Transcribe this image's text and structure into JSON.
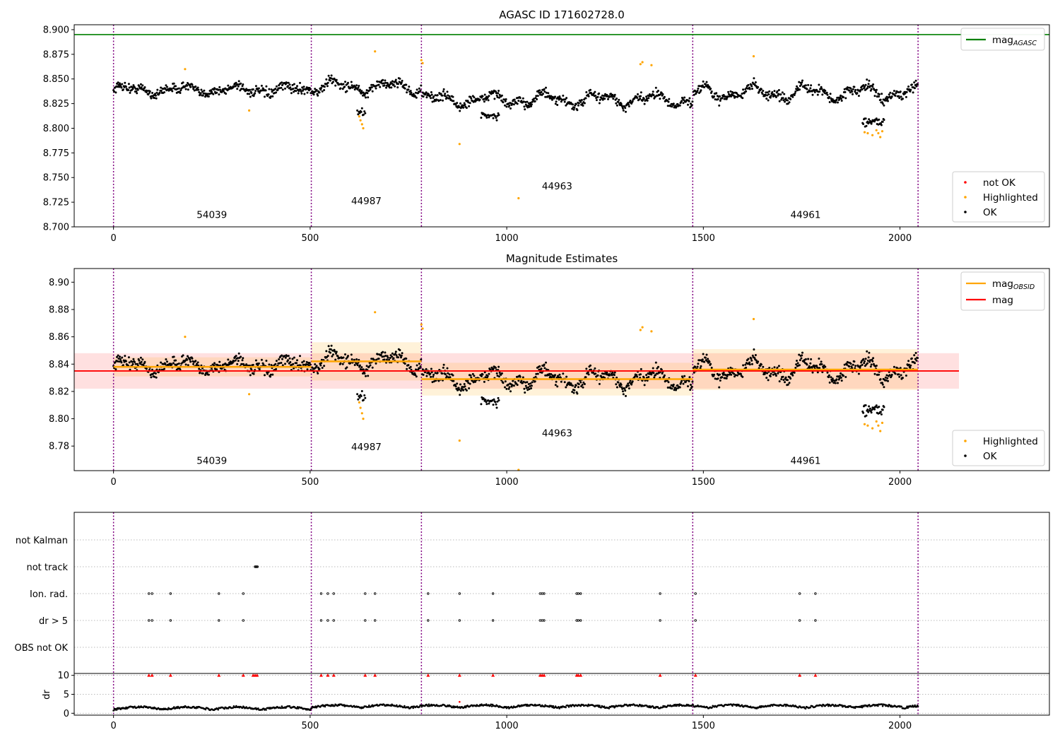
{
  "chart_data": [
    {
      "type": "scatter",
      "title": "AGASC ID 171602728.0",
      "xlim": [
        -100,
        2380
      ],
      "ylim": [
        8.7,
        8.905
      ],
      "xticks": [
        0,
        500,
        1000,
        1500,
        2000
      ],
      "yticks": [
        "8.700",
        "8.725",
        "8.750",
        "8.775",
        "8.800",
        "8.825",
        "8.850",
        "8.875",
        "8.900"
      ],
      "obs_boundaries": [
        0,
        503,
        783,
        1473,
        2046
      ],
      "obs_labels": [
        {
          "text": "54039",
          "x": 250,
          "y": 8.709
        },
        {
          "text": "44987",
          "x": 643,
          "y": 8.723
        },
        {
          "text": "44963",
          "x": 1128,
          "y": 8.738
        },
        {
          "text": "44961",
          "x": 1760,
          "y": 8.709
        }
      ],
      "mag_agasc": 8.895,
      "legend_top": [
        {
          "label": "mag",
          "sub": "AGASC",
          "color": "#008000"
        }
      ],
      "legend_bottom": [
        {
          "label": "not OK",
          "color": "#ff0000"
        },
        {
          "label": "Highlighted",
          "color": "#ffa500"
        },
        {
          "label": "OK",
          "color": "#000000"
        }
      ],
      "segments": [
        {
          "x0": 0,
          "x1": 503,
          "level": 8.839,
          "amp": 0.006
        },
        {
          "x0": 505,
          "x1": 783,
          "level": 8.842,
          "amp": 0.009
        },
        {
          "x0": 785,
          "x1": 1473,
          "level": 8.829,
          "amp": 0.009
        },
        {
          "x0": 1475,
          "x1": 2046,
          "level": 8.836,
          "amp": 0.01
        }
      ],
      "highlighted": [
        {
          "x": 182,
          "y": 8.86
        },
        {
          "x": 345,
          "y": 8.818
        },
        {
          "x": 625,
          "y": 8.812
        },
        {
          "x": 628,
          "y": 8.808
        },
        {
          "x": 632,
          "y": 8.804
        },
        {
          "x": 635,
          "y": 8.8
        },
        {
          "x": 665,
          "y": 8.878
        },
        {
          "x": 783,
          "y": 8.869
        },
        {
          "x": 786,
          "y": 8.866
        },
        {
          "x": 880,
          "y": 8.784
        },
        {
          "x": 1030,
          "y": 8.729
        },
        {
          "x": 1340,
          "y": 8.865
        },
        {
          "x": 1345,
          "y": 8.867
        },
        {
          "x": 1368,
          "y": 8.864
        },
        {
          "x": 1628,
          "y": 8.873
        },
        {
          "x": 1910,
          "y": 8.796
        },
        {
          "x": 1918,
          "y": 8.795
        },
        {
          "x": 1930,
          "y": 8.793
        },
        {
          "x": 1940,
          "y": 8.798
        },
        {
          "x": 1945,
          "y": 8.795
        },
        {
          "x": 1950,
          "y": 8.791
        },
        {
          "x": 1955,
          "y": 8.797
        }
      ]
    },
    {
      "type": "scatter",
      "title": "Magnitude Estimates",
      "xlim": [
        -100,
        2380
      ],
      "ylim": [
        8.762,
        8.91
      ],
      "xticks": [
        0,
        500,
        1000,
        1500,
        2000
      ],
      "yticks": [
        "8.78",
        "8.80",
        "8.82",
        "8.84",
        "8.86",
        "8.88",
        "8.90"
      ],
      "obs_boundaries": [
        0,
        503,
        783,
        1473,
        2046
      ],
      "obs_labels": [
        {
          "text": "54039",
          "x": 250,
          "y": 8.767
        },
        {
          "text": "44987",
          "x": 643,
          "y": 8.777
        },
        {
          "text": "44963",
          "x": 1128,
          "y": 8.787
        },
        {
          "text": "44961",
          "x": 1760,
          "y": 8.767
        }
      ],
      "mag": {
        "value": 8.835,
        "band": [
          8.822,
          8.848
        ],
        "x0": -100,
        "x1": 2150
      },
      "mag_obsid": [
        {
          "x0": 0,
          "x1": 503,
          "value": 8.838,
          "band": [
            8.831,
            8.845
          ]
        },
        {
          "x0": 503,
          "x1": 783,
          "value": 8.842,
          "band": [
            8.828,
            8.856
          ]
        },
        {
          "x0": 783,
          "x1": 1473,
          "value": 8.829,
          "band": [
            8.817,
            8.841
          ]
        },
        {
          "x0": 1473,
          "x1": 2046,
          "value": 8.836,
          "band": [
            8.821,
            8.851
          ]
        }
      ],
      "legend_top": [
        {
          "label": "mag",
          "sub": "OBSID",
          "color": "#ffa500"
        },
        {
          "label": "mag",
          "sub": "",
          "color": "#ff0000"
        }
      ],
      "legend_bottom": [
        {
          "label": "Highlighted",
          "color": "#ffa500"
        },
        {
          "label": "OK",
          "color": "#000000"
        }
      ]
    },
    {
      "type": "scatter",
      "title": "",
      "xlim": [
        -100,
        2380
      ],
      "xticks": [
        0,
        500,
        1000,
        1500,
        2000
      ],
      "flag_labels": [
        "not Kalman",
        "not track",
        "Ion. rad.",
        "dr > 5",
        "OBS not OK"
      ],
      "not_track_x": [
        360,
        362,
        364,
        366
      ],
      "ion_rad_x": [
        90,
        98,
        145,
        268,
        330,
        528,
        545,
        560,
        640,
        665,
        800,
        880,
        965,
        1085,
        1090,
        1095,
        1178,
        1182,
        1188,
        1390,
        1480,
        1745,
        1785
      ],
      "dr_gt5_x": [
        90,
        98,
        145,
        268,
        330,
        528,
        545,
        560,
        640,
        665,
        800,
        880,
        965,
        1085,
        1090,
        1095,
        1178,
        1182,
        1188,
        1390,
        1480,
        1745,
        1785
      ],
      "dr_ylabel": "dr",
      "dr_yticks": [
        0,
        5,
        10
      ],
      "dr_ylim": [
        -0.5,
        10.5
      ],
      "dr_clipped_x": [
        90,
        98,
        145,
        268,
        330,
        355,
        360,
        365,
        528,
        545,
        560,
        640,
        665,
        800,
        880,
        965,
        1085,
        1090,
        1095,
        1178,
        1182,
        1188,
        1390,
        1480,
        1745,
        1785
      ]
    }
  ]
}
